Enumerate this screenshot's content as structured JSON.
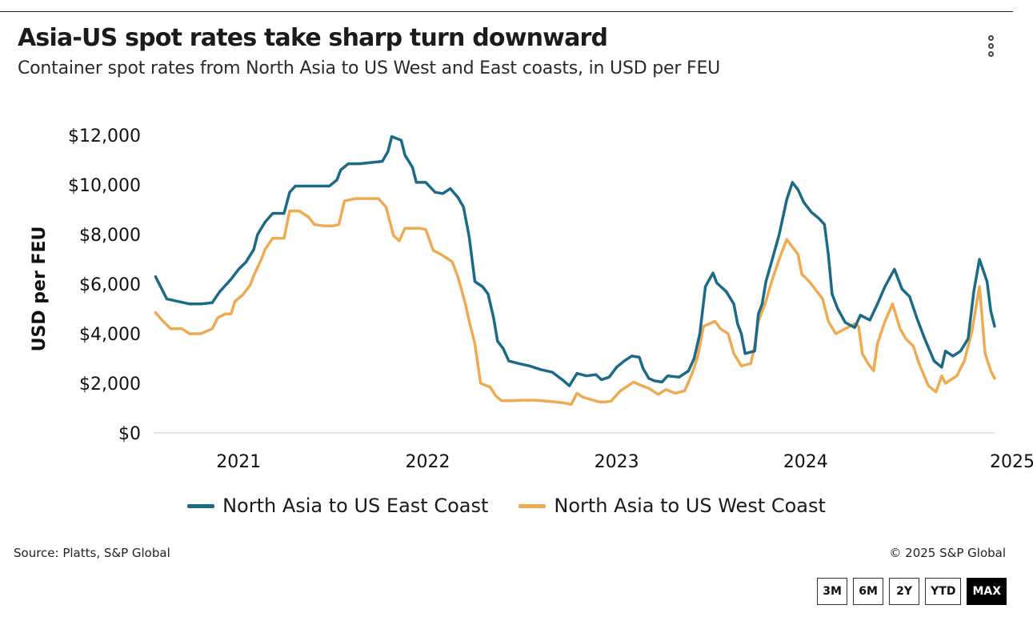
{
  "header": {
    "title": "Asia-US spot rates take sharp turn downward",
    "subtitle": "Container spot rates from North Asia to US West and East coasts, in USD per FEU"
  },
  "footer": {
    "source": "Source: Platts, S&P Global",
    "copyright": "© 2025 S&P Global"
  },
  "range_buttons": [
    "3M",
    "6M",
    "2Y",
    "YTD",
    "MAX"
  ],
  "active_range": "MAX",
  "colors": {
    "east": "#1b6a87",
    "west": "#eeab52",
    "axis": "#cccccc"
  },
  "chart_data": {
    "type": "line",
    "title": "Asia-US spot rates take sharp turn downward",
    "ylabel": "USD per FEU",
    "xlabel": "",
    "ylim": [
      0,
      12000
    ],
    "xlim": [
      2020.55,
      2025.0
    ],
    "yticks": [
      0,
      2000,
      4000,
      6000,
      8000,
      10000,
      12000
    ],
    "ytick_labels": [
      "$0",
      "$2,000",
      "$4,000",
      "$6,000",
      "$8,000",
      "$10,000",
      "$12,000"
    ],
    "xticks": [
      2021,
      2022,
      2023,
      2024,
      2025
    ],
    "xtick_labels": [
      "2021",
      "2022",
      "2023",
      "2024",
      "2025"
    ],
    "legend_position": "bottom",
    "series": [
      {
        "name": "North Asia to US East Coast",
        "points": [
          [
            2020.56,
            6300
          ],
          [
            2020.62,
            5400
          ],
          [
            2020.68,
            5300
          ],
          [
            2020.74,
            5200
          ],
          [
            2020.8,
            5200
          ],
          [
            2020.86,
            5250
          ],
          [
            2020.9,
            5700
          ],
          [
            2020.96,
            6200
          ],
          [
            2021.0,
            6600
          ],
          [
            2021.04,
            6900
          ],
          [
            2021.08,
            7400
          ],
          [
            2021.1,
            8000
          ],
          [
            2021.14,
            8500
          ],
          [
            2021.18,
            8850
          ],
          [
            2021.24,
            8850
          ],
          [
            2021.27,
            9700
          ],
          [
            2021.3,
            9950
          ],
          [
            2021.36,
            9950
          ],
          [
            2021.42,
            9950
          ],
          [
            2021.48,
            9950
          ],
          [
            2021.52,
            10200
          ],
          [
            2021.54,
            10600
          ],
          [
            2021.58,
            10850
          ],
          [
            2021.64,
            10850
          ],
          [
            2021.7,
            10900
          ],
          [
            2021.76,
            10950
          ],
          [
            2021.79,
            11350
          ],
          [
            2021.81,
            11950
          ],
          [
            2021.86,
            11800
          ],
          [
            2021.88,
            11200
          ],
          [
            2021.92,
            10700
          ],
          [
            2021.94,
            10100
          ],
          [
            2021.99,
            10100
          ],
          [
            2022.04,
            9700
          ],
          [
            2022.08,
            9650
          ],
          [
            2022.12,
            9850
          ],
          [
            2022.16,
            9500
          ],
          [
            2022.19,
            9100
          ],
          [
            2022.22,
            7900
          ],
          [
            2022.25,
            6100
          ],
          [
            2022.29,
            5900
          ],
          [
            2022.32,
            5600
          ],
          [
            2022.35,
            4600
          ],
          [
            2022.37,
            3700
          ],
          [
            2022.4,
            3400
          ],
          [
            2022.43,
            2900
          ],
          [
            2022.48,
            2800
          ],
          [
            2022.54,
            2700
          ],
          [
            2022.6,
            2550
          ],
          [
            2022.66,
            2450
          ],
          [
            2022.72,
            2100
          ],
          [
            2022.75,
            1900
          ],
          [
            2022.79,
            2400
          ],
          [
            2022.84,
            2300
          ],
          [
            2022.89,
            2350
          ],
          [
            2022.92,
            2150
          ],
          [
            2022.96,
            2250
          ],
          [
            2023.0,
            2650
          ],
          [
            2023.04,
            2900
          ],
          [
            2023.08,
            3100
          ],
          [
            2023.12,
            3050
          ],
          [
            2023.14,
            2600
          ],
          [
            2023.17,
            2200
          ],
          [
            2023.2,
            2100
          ],
          [
            2023.24,
            2050
          ],
          [
            2023.27,
            2300
          ],
          [
            2023.33,
            2250
          ],
          [
            2023.38,
            2500
          ],
          [
            2023.41,
            3000
          ],
          [
            2023.44,
            4000
          ],
          [
            2023.47,
            5900
          ],
          [
            2023.51,
            6450
          ],
          [
            2023.53,
            6050
          ],
          [
            2023.58,
            5700
          ],
          [
            2023.62,
            5200
          ],
          [
            2023.64,
            4400
          ],
          [
            2023.66,
            4000
          ],
          [
            2023.68,
            3200
          ],
          [
            2023.73,
            3300
          ],
          [
            2023.75,
            4800
          ],
          [
            2023.77,
            5200
          ],
          [
            2023.79,
            6100
          ],
          [
            2023.82,
            6900
          ],
          [
            2023.86,
            8000
          ],
          [
            2023.9,
            9400
          ],
          [
            2023.93,
            10100
          ],
          [
            2023.96,
            9800
          ],
          [
            2023.99,
            9300
          ],
          [
            2024.03,
            8900
          ],
          [
            2024.07,
            8650
          ],
          [
            2024.1,
            8400
          ],
          [
            2024.12,
            7200
          ],
          [
            2024.14,
            5600
          ],
          [
            2024.17,
            5000
          ],
          [
            2024.21,
            4450
          ],
          [
            2024.26,
            4250
          ],
          [
            2024.29,
            4750
          ],
          [
            2024.34,
            4550
          ],
          [
            2024.38,
            5200
          ],
          [
            2024.42,
            5900
          ],
          [
            2024.47,
            6600
          ],
          [
            2024.51,
            5800
          ],
          [
            2024.55,
            5500
          ],
          [
            2024.59,
            4600
          ],
          [
            2024.63,
            3800
          ],
          [
            2024.68,
            2900
          ],
          [
            2024.72,
            2650
          ],
          [
            2024.74,
            3300
          ],
          [
            2024.78,
            3100
          ],
          [
            2024.82,
            3300
          ],
          [
            2024.86,
            3800
          ],
          [
            2024.89,
            5700
          ],
          [
            2024.92,
            7000
          ],
          [
            2024.96,
            6100
          ],
          [
            2024.98,
            4900
          ],
          [
            2025.0,
            4300
          ]
        ]
      },
      {
        "name": "North Asia to US West Coast",
        "points": [
          [
            2020.56,
            4850
          ],
          [
            2020.6,
            4500
          ],
          [
            2020.64,
            4200
          ],
          [
            2020.7,
            4200
          ],
          [
            2020.74,
            4000
          ],
          [
            2020.8,
            4000
          ],
          [
            2020.86,
            4200
          ],
          [
            2020.89,
            4650
          ],
          [
            2020.93,
            4800
          ],
          [
            2020.96,
            4800
          ],
          [
            2020.98,
            5300
          ],
          [
            2021.02,
            5550
          ],
          [
            2021.06,
            5950
          ],
          [
            2021.08,
            6350
          ],
          [
            2021.12,
            7000
          ],
          [
            2021.14,
            7400
          ],
          [
            2021.18,
            7850
          ],
          [
            2021.24,
            7850
          ],
          [
            2021.27,
            8950
          ],
          [
            2021.32,
            8950
          ],
          [
            2021.37,
            8700
          ],
          [
            2021.4,
            8400
          ],
          [
            2021.45,
            8350
          ],
          [
            2021.5,
            8350
          ],
          [
            2021.53,
            8400
          ],
          [
            2021.56,
            9350
          ],
          [
            2021.62,
            9450
          ],
          [
            2021.68,
            9450
          ],
          [
            2021.74,
            9450
          ],
          [
            2021.78,
            9100
          ],
          [
            2021.82,
            7950
          ],
          [
            2021.85,
            7750
          ],
          [
            2021.88,
            8250
          ],
          [
            2021.92,
            8250
          ],
          [
            2021.96,
            8250
          ],
          [
            2021.99,
            8200
          ],
          [
            2022.03,
            7350
          ],
          [
            2022.07,
            7200
          ],
          [
            2022.1,
            7050
          ],
          [
            2022.13,
            6900
          ],
          [
            2022.16,
            6300
          ],
          [
            2022.2,
            5200
          ],
          [
            2022.22,
            4500
          ],
          [
            2022.25,
            3600
          ],
          [
            2022.28,
            2000
          ],
          [
            2022.33,
            1850
          ],
          [
            2022.36,
            1500
          ],
          [
            2022.39,
            1300
          ],
          [
            2022.45,
            1300
          ],
          [
            2022.5,
            1320
          ],
          [
            2022.57,
            1320
          ],
          [
            2022.63,
            1280
          ],
          [
            2022.69,
            1240
          ],
          [
            2022.73,
            1200
          ],
          [
            2022.76,
            1150
          ],
          [
            2022.79,
            1600
          ],
          [
            2022.82,
            1450
          ],
          [
            2022.86,
            1350
          ],
          [
            2022.91,
            1250
          ],
          [
            2022.94,
            1250
          ],
          [
            2022.97,
            1280
          ],
          [
            2023.02,
            1700
          ],
          [
            2023.06,
            1900
          ],
          [
            2023.09,
            2050
          ],
          [
            2023.12,
            1950
          ],
          [
            2023.17,
            1800
          ],
          [
            2023.22,
            1550
          ],
          [
            2023.26,
            1750
          ],
          [
            2023.31,
            1600
          ],
          [
            2023.36,
            1700
          ],
          [
            2023.4,
            2400
          ],
          [
            2023.43,
            3100
          ],
          [
            2023.46,
            4300
          ],
          [
            2023.52,
            4500
          ],
          [
            2023.55,
            4200
          ],
          [
            2023.59,
            4000
          ],
          [
            2023.62,
            3200
          ],
          [
            2023.66,
            2700
          ],
          [
            2023.71,
            2800
          ],
          [
            2023.73,
            3500
          ],
          [
            2023.75,
            4500
          ],
          [
            2023.79,
            5300
          ],
          [
            2023.82,
            6100
          ],
          [
            2023.86,
            7000
          ],
          [
            2023.9,
            7800
          ],
          [
            2023.93,
            7500
          ],
          [
            2023.96,
            7200
          ],
          [
            2023.98,
            6400
          ],
          [
            2024.02,
            6100
          ],
          [
            2024.06,
            5700
          ],
          [
            2024.09,
            5400
          ],
          [
            2024.12,
            4500
          ],
          [
            2024.16,
            4000
          ],
          [
            2024.21,
            4200
          ],
          [
            2024.26,
            4400
          ],
          [
            2024.28,
            4300
          ],
          [
            2024.3,
            3200
          ],
          [
            2024.33,
            2800
          ],
          [
            2024.36,
            2500
          ],
          [
            2024.38,
            3600
          ],
          [
            2024.42,
            4500
          ],
          [
            2024.46,
            5200
          ],
          [
            2024.5,
            4200
          ],
          [
            2024.53,
            3800
          ],
          [
            2024.57,
            3500
          ],
          [
            2024.6,
            2800
          ],
          [
            2024.65,
            1900
          ],
          [
            2024.69,
            1650
          ],
          [
            2024.72,
            2300
          ],
          [
            2024.74,
            2000
          ],
          [
            2024.78,
            2200
          ],
          [
            2024.8,
            2300
          ],
          [
            2024.84,
            2900
          ],
          [
            2024.88,
            4100
          ],
          [
            2024.92,
            5900
          ],
          [
            2024.95,
            3200
          ],
          [
            2024.98,
            2500
          ],
          [
            2025.0,
            2200
          ]
        ]
      }
    ]
  }
}
